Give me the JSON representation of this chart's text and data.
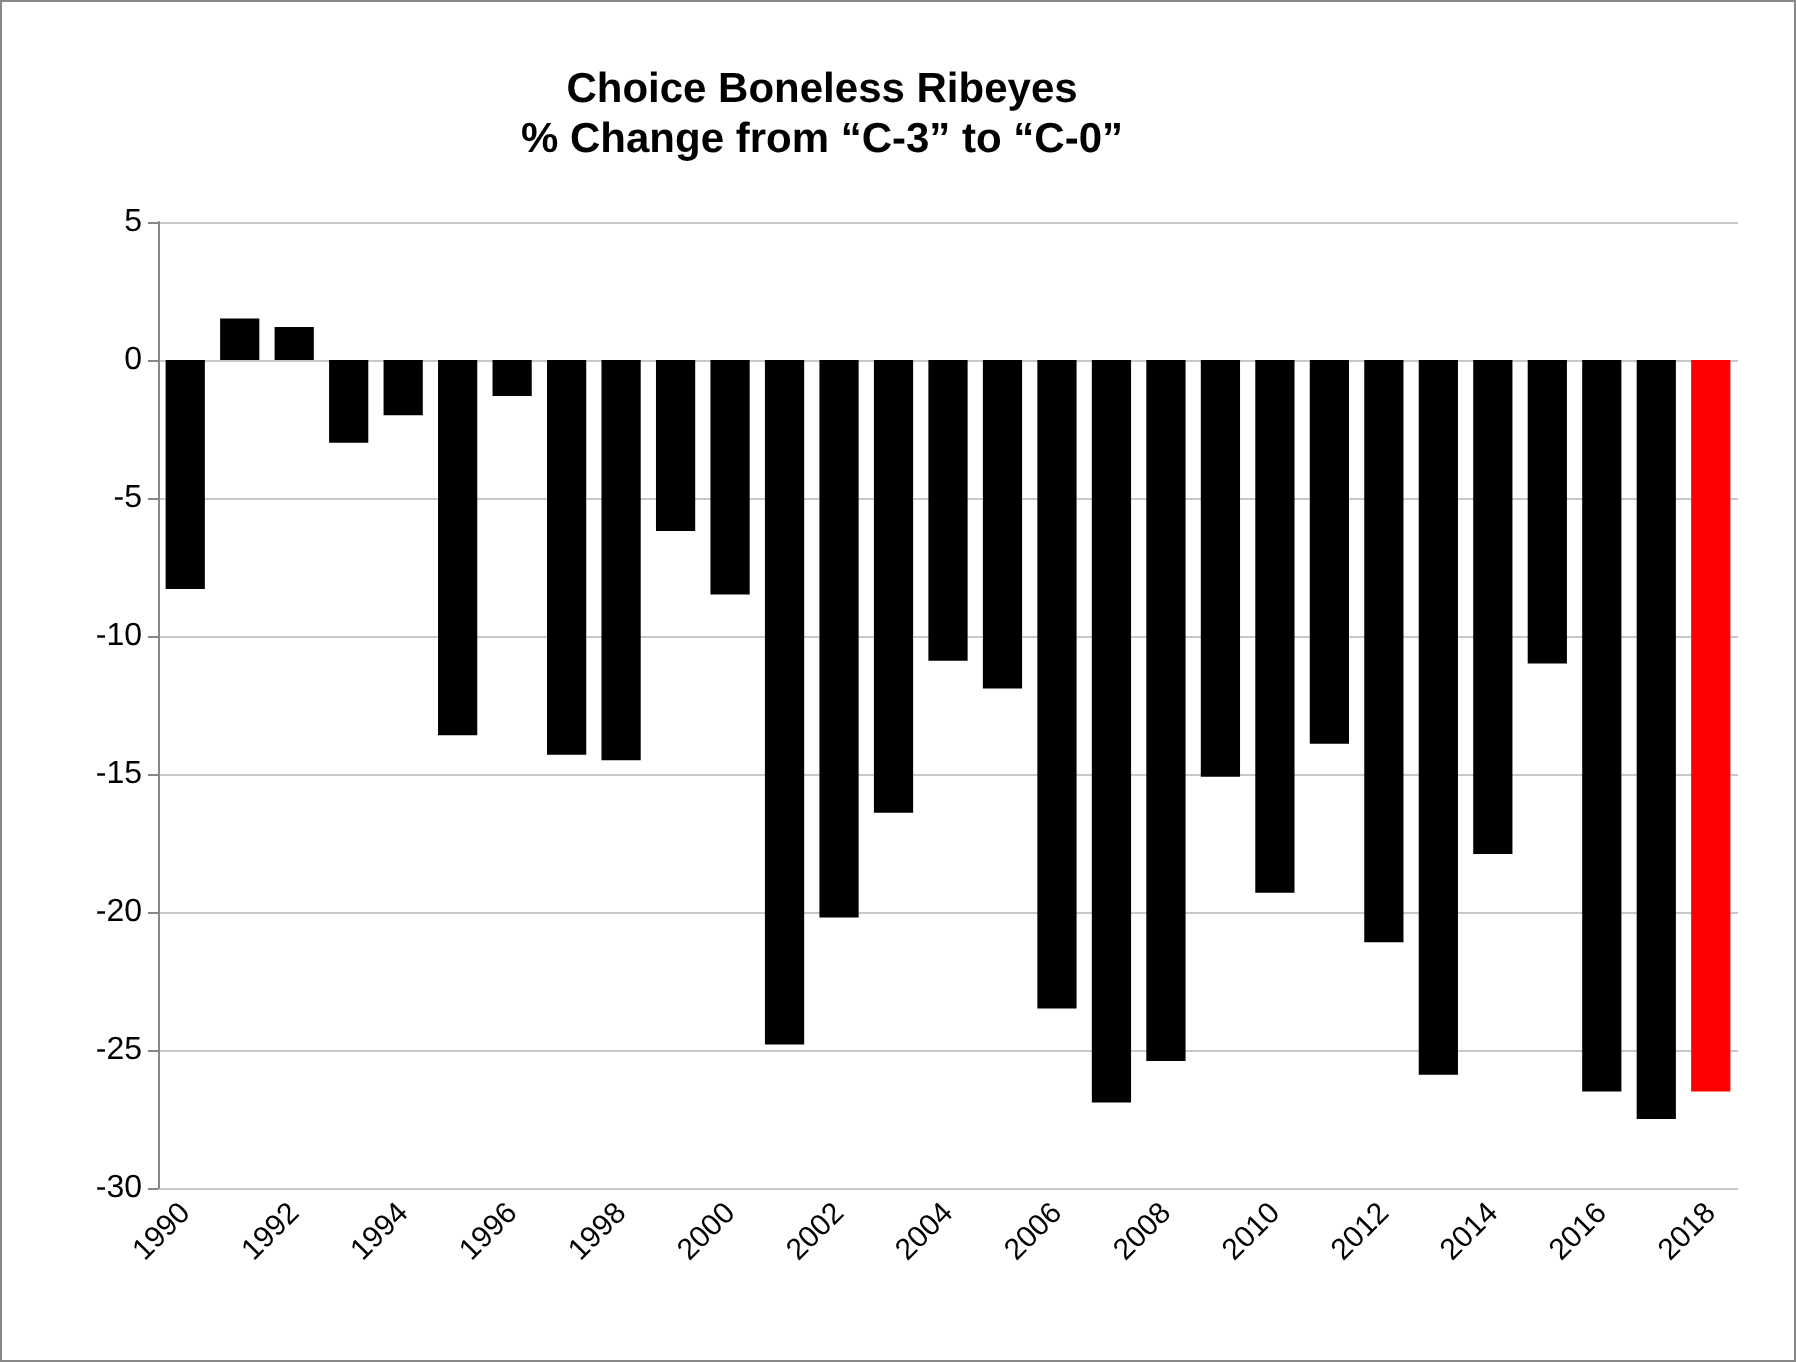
{
  "chart_data": {
    "type": "bar",
    "title": "Choice Boneless Ribeyes",
    "subtitle": "% Change from “C-3” to “C-0”",
    "categories": [
      "1990",
      null,
      "1992",
      null,
      "1994",
      null,
      "1996",
      null,
      "1998",
      null,
      "2000",
      null,
      "2002",
      null,
      "2004",
      null,
      "2006",
      null,
      "2008",
      null,
      "2010",
      null,
      "2012",
      null,
      "2014",
      null,
      "2016",
      null,
      "2018"
    ],
    "values": [
      -8.3,
      1.5,
      1.2,
      -3.0,
      -2.0,
      -13.6,
      -1.3,
      -14.3,
      -14.5,
      -6.2,
      -8.5,
      -24.8,
      -20.2,
      -16.4,
      -10.9,
      -11.9,
      -23.5,
      -26.9,
      -25.4,
      -15.1,
      -19.3,
      -13.9,
      -21.1,
      -25.9,
      -17.9,
      -11.0,
      -26.5,
      -27.5,
      -26.5
    ],
    "colors": [
      "#000000",
      "#000000",
      "#000000",
      "#000000",
      "#000000",
      "#000000",
      "#000000",
      "#000000",
      "#000000",
      "#000000",
      "#000000",
      "#000000",
      "#000000",
      "#000000",
      "#000000",
      "#000000",
      "#000000",
      "#000000",
      "#000000",
      "#000000",
      "#000000",
      "#000000",
      "#000000",
      "#000000",
      "#000000",
      "#000000",
      "#000000",
      "#000000",
      "#ff0000"
    ],
    "ylim": [
      -30,
      5
    ],
    "yticks": [
      -30,
      -25,
      -20,
      -15,
      -10,
      -5,
      0,
      5
    ],
    "grid": "y"
  }
}
